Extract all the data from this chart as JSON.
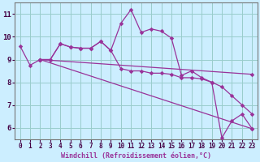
{
  "xlabel": "Windchill (Refroidissement éolien,°C)",
  "bg_color": "#cceeff",
  "grid_color": "#99cccc",
  "line_color": "#993399",
  "xlim": [
    -0.5,
    23.5
  ],
  "ylim": [
    5.5,
    11.5
  ],
  "yticks": [
    6,
    7,
    8,
    9,
    10,
    11
  ],
  "xticks": [
    0,
    1,
    2,
    3,
    4,
    5,
    6,
    7,
    8,
    9,
    10,
    11,
    12,
    13,
    14,
    15,
    16,
    17,
    18,
    19,
    20,
    21,
    22,
    23
  ],
  "line_main": {
    "x": [
      0,
      1,
      2,
      3,
      4,
      5,
      6,
      7,
      8,
      9,
      10,
      11,
      12,
      13,
      14,
      15,
      16,
      17,
      18,
      19,
      20,
      21,
      22,
      23
    ],
    "y": [
      9.6,
      8.75,
      9.0,
      9.0,
      9.7,
      9.55,
      9.5,
      9.5,
      9.8,
      9.4,
      10.6,
      11.2,
      10.2,
      10.35,
      10.25,
      9.95,
      8.3,
      8.5,
      8.2,
      8.0,
      5.55,
      6.3,
      6.6,
      5.95
    ]
  },
  "line_slow": {
    "x": [
      2,
      3,
      4,
      5,
      6,
      7,
      8,
      9,
      10,
      11,
      12,
      13,
      14,
      15,
      16,
      17,
      18,
      19,
      20,
      21,
      22,
      23
    ],
    "y": [
      9.0,
      9.0,
      9.7,
      9.55,
      9.5,
      9.5,
      9.8,
      9.4,
      8.6,
      8.5,
      8.5,
      8.4,
      8.4,
      8.35,
      8.2,
      8.2,
      8.15,
      8.0,
      7.8,
      7.4,
      7.0,
      6.6
    ]
  },
  "line_trend1": {
    "x": [
      2,
      23
    ],
    "y": [
      9.0,
      8.35
    ]
  },
  "line_trend2": {
    "x": [
      2,
      23
    ],
    "y": [
      9.0,
      5.95
    ]
  }
}
